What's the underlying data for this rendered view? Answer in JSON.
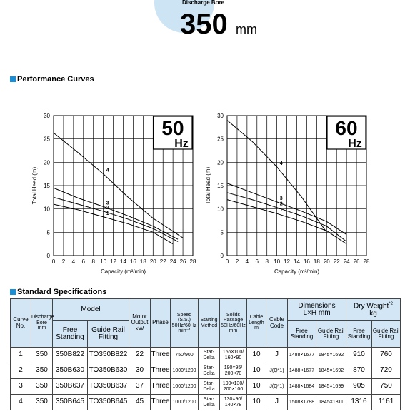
{
  "header": {
    "caption": "Discharge Bore",
    "value": "350",
    "unit": "mm"
  },
  "sections": [
    "Performance Curves",
    "Standard Specifications"
  ],
  "chart_data": [
    {
      "type": "line",
      "panel_label": "50",
      "panel_unit": "Hz",
      "xlabel": "Capacity (m³/min)",
      "ylabel": "Total Head (m)",
      "xlim": [
        0,
        28
      ],
      "ylim": [
        0,
        30
      ],
      "xticks": [
        0,
        2,
        4,
        6,
        8,
        10,
        12,
        14,
        16,
        18,
        20,
        22,
        24,
        26,
        28
      ],
      "yticks": [
        0,
        5,
        10,
        15,
        20,
        25,
        30
      ],
      "grid": true,
      "color": "#000000",
      "series": [
        {
          "name": "1",
          "x": [
            0,
            5,
            10,
            15,
            20,
            24
          ],
          "values": [
            11,
            9.8,
            8.3,
            6.8,
            5,
            2.5
          ]
        },
        {
          "name": "2",
          "x": [
            0,
            5,
            10,
            15,
            20,
            25
          ],
          "values": [
            12.5,
            11,
            9.5,
            7.8,
            5.8,
            3
          ]
        },
        {
          "name": "3",
          "x": [
            0,
            5,
            10,
            15,
            20,
            25
          ],
          "values": [
            14.5,
            12.3,
            10.5,
            8.5,
            6.3,
            3.5
          ]
        },
        {
          "name": "4",
          "x": [
            0,
            5,
            10,
            15,
            20,
            26
          ],
          "values": [
            26.3,
            22,
            17.5,
            12.5,
            8,
            3.8
          ]
        }
      ]
    },
    {
      "type": "line",
      "panel_label": "60",
      "panel_unit": "Hz",
      "xlabel": "Capacity (m³/min)",
      "ylabel": "Total Head (m)",
      "xlim": [
        0,
        28
      ],
      "ylim": [
        0,
        30
      ],
      "xticks": [
        0,
        2,
        4,
        6,
        8,
        10,
        12,
        14,
        16,
        18,
        20,
        22,
        24,
        26,
        28
      ],
      "yticks": [
        0,
        5,
        10,
        15,
        20,
        25,
        30
      ],
      "grid": true,
      "color": "#000000",
      "series": [
        {
          "name": "1",
          "x": [
            0,
            5,
            10,
            15,
            20,
            24
          ],
          "values": [
            12,
            10.5,
            9,
            7.3,
            5.3,
            2.5
          ]
        },
        {
          "name": "2",
          "x": [
            0,
            5,
            10,
            15,
            20,
            24
          ],
          "values": [
            13.5,
            12,
            10.3,
            8.5,
            6.3,
            3
          ]
        },
        {
          "name": "3",
          "x": [
            0,
            5,
            10,
            15,
            20,
            24
          ],
          "values": [
            15.5,
            13.5,
            11.5,
            9.5,
            7.3,
            4.5
          ]
        },
        {
          "name": "4",
          "x": [
            0,
            5,
            10,
            15,
            20
          ],
          "values": [
            29,
            24.5,
            19,
            12.5,
            5
          ]
        }
      ]
    }
  ],
  "table": {
    "head": {
      "curve": "Curve\nNo.",
      "bore": "Discharge\nBore\nmm",
      "model": "Model",
      "motor": "Motor\nOutput\nkW",
      "phase": "Phase",
      "speed": "Speed\n(S.S.)\n50Hz/60Hz\nmin⁻¹",
      "starting": "Starting\nMethod",
      "solids": "Solids\nPassage\n50Hz/60Hz\nmm",
      "cable_length": "Cable\nLength\nm",
      "cable_code": "Cable\nCode",
      "dimensions": "Dimensions\nL×H mm",
      "weight": "Dry Weight",
      "weight_note": "*2",
      "weight_unit": "kg",
      "sub": [
        "Free\nStanding",
        "Guide Rail\nFitting",
        "Free\nStanding",
        "Guide Rail\nFitting",
        "Free\nStanding",
        "Guide Rail\nFitting"
      ]
    },
    "rows": [
      [
        "1",
        "350",
        "350B822",
        "TO350B822",
        "22",
        "Three",
        "750/900",
        "Star-Delta",
        "156×100/\n160×90",
        "10",
        "J",
        "1488×1677",
        "1845×1692",
        "910",
        "760"
      ],
      [
        "2",
        "350",
        "350B630",
        "TO350B630",
        "30",
        "Three",
        "1000/1200",
        "Star-Delta",
        "190×95/\n200×70",
        "10",
        "J(Q*1)",
        "1488×1677",
        "1845×1692",
        "870",
        "720"
      ],
      [
        "3",
        "350",
        "350B637",
        "TO350B637",
        "37",
        "Three",
        "1000/1200",
        "Star-Delta",
        "190×130/\n200×100",
        "10",
        "J(Q*1)",
        "1488×1684",
        "1845×1699",
        "905",
        "750"
      ],
      [
        "4",
        "350",
        "350B645",
        "TO350B645",
        "45",
        "Three",
        "1000/1200",
        "Star-Delta",
        "130×90/\n140×78",
        "10",
        "J",
        "1508×1788",
        "1845×1811",
        "1316",
        "1161"
      ]
    ]
  }
}
